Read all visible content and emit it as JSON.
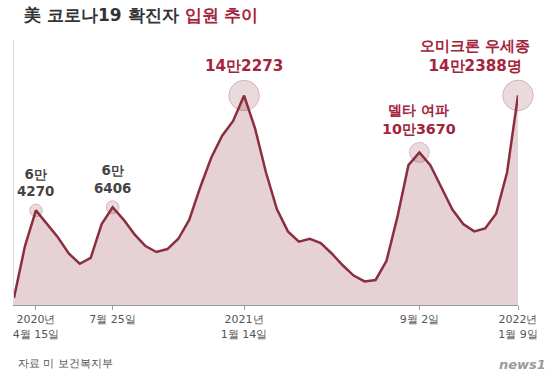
{
  "chart_data": {
    "type": "area",
    "title": "美 코로나19 확진자 입원 추이",
    "categories": [
      null,
      null,
      "2020년 4월 15일",
      null,
      null,
      null,
      null,
      null,
      null,
      "7월 25일",
      null,
      null,
      null,
      null,
      null,
      null,
      null,
      null,
      null,
      null,
      null,
      "2021년 1월 14일",
      null,
      null,
      null,
      null,
      null,
      null,
      null,
      null,
      null,
      null,
      null,
      null,
      null,
      null,
      null,
      "9월 2일",
      null,
      null,
      null,
      null,
      null,
      null,
      null,
      null,
      "2022년 1월 9일"
    ],
    "values": [
      5000,
      40000,
      64270,
      55000,
      46000,
      35000,
      28000,
      32000,
      55000,
      66406,
      58000,
      48000,
      40000,
      36000,
      38000,
      45000,
      58000,
      80000,
      100000,
      115000,
      125000,
      142273,
      120000,
      90000,
      65000,
      50000,
      43000,
      45000,
      42000,
      35000,
      27000,
      20000,
      16000,
      17000,
      30000,
      60000,
      95000,
      103670,
      95000,
      80000,
      65000,
      55000,
      50000,
      52000,
      62000,
      90000,
      142388
    ],
    "color": "#8b2f3f",
    "ylim": [
      0,
      180000
    ],
    "tick_labels": "x",
    "grid": false,
    "annotations": [
      {
        "x": "2020년 4월 15일",
        "value": 64270,
        "lines": [
          "6만",
          "4270"
        ],
        "color": "#444444"
      },
      {
        "x": "7월 25일",
        "value": 66406,
        "lines": [
          "6만",
          "6406"
        ],
        "color": "#444444"
      },
      {
        "x": "2021년 1월 14일",
        "value": 142273,
        "lines": [
          "14만2273"
        ],
        "color": "#a3243b"
      },
      {
        "x": "9월 2일",
        "value": 103670,
        "lines": [
          "델타 여파",
          "10만3670"
        ],
        "color": "#a3243b"
      },
      {
        "x": "2022년 1월 9일",
        "value": 142388,
        "lines": [
          "오미크론 우세종",
          "14만2388명"
        ],
        "color": "#a3243b"
      }
    ],
    "source": "자료 미 보건복지부",
    "credit": "news1"
  }
}
